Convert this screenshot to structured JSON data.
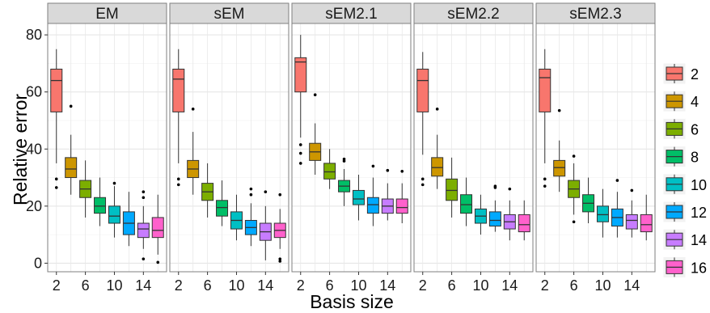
{
  "chart_data": {
    "type": "boxplot",
    "xlabel": "Basis size",
    "ylabel": "Relative error",
    "ylim": [
      -3,
      84
    ],
    "y_ticks": [
      0,
      20,
      40,
      60,
      80
    ],
    "x_ticks": [
      2,
      6,
      10,
      14
    ],
    "categories": [
      2,
      4,
      6,
      8,
      10,
      12,
      14,
      16
    ],
    "legend_title": "",
    "legend_position": "right",
    "grid": true,
    "colors": [
      "#F8766D",
      "#CD9600",
      "#7CAE00",
      "#00BE67",
      "#00BFC4",
      "#00A9FF",
      "#C77CFF",
      "#FF61CC"
    ],
    "panels": [
      {
        "name": "EM",
        "boxes": [
          {
            "basis": 2,
            "min": 35,
            "q1": 53,
            "median": 64,
            "q3": 68,
            "max": 75,
            "outliers": [
              29.5,
              26.5
            ]
          },
          {
            "basis": 4,
            "min": 24,
            "q1": 30,
            "median": 33,
            "q3": 37,
            "max": 45,
            "outliers": [
              55
            ]
          },
          {
            "basis": 6,
            "min": 16,
            "q1": 23,
            "median": 26,
            "q3": 29,
            "max": 36,
            "outliers": []
          },
          {
            "basis": 8,
            "min": 13,
            "q1": 17.5,
            "median": 20,
            "q3": 23,
            "max": 30,
            "outliers": []
          },
          {
            "basis": 10,
            "min": 9,
            "q1": 14,
            "median": 16.5,
            "q3": 20,
            "max": 27,
            "outliers": [
              28
            ]
          },
          {
            "basis": 12,
            "min": 6,
            "q1": 10,
            "median": 14,
            "q3": 18,
            "max": 25,
            "outliers": []
          },
          {
            "basis": 14,
            "min": 5,
            "q1": 9,
            "median": 12,
            "q3": 14,
            "max": 20,
            "outliers": [
              25,
              23,
              1.5
            ]
          },
          {
            "basis": 16,
            "min": 3,
            "q1": 9,
            "median": 11.5,
            "q3": 16,
            "max": 24,
            "outliers": [
              0.3
            ]
          }
        ]
      },
      {
        "name": "sEM",
        "boxes": [
          {
            "basis": 2,
            "min": 35,
            "q1": 53,
            "median": 64.5,
            "q3": 68,
            "max": 75,
            "outliers": [
              29.5,
              27.5
            ]
          },
          {
            "basis": 4,
            "min": 24,
            "q1": 30,
            "median": 33,
            "q3": 36,
            "max": 46,
            "outliers": [
              54
            ]
          },
          {
            "basis": 6,
            "min": 16,
            "q1": 22,
            "median": 25,
            "q3": 28,
            "max": 35,
            "outliers": []
          },
          {
            "basis": 8,
            "min": 13,
            "q1": 16.5,
            "median": 19.5,
            "q3": 22,
            "max": 29,
            "outliers": []
          },
          {
            "basis": 10,
            "min": 8,
            "q1": 12,
            "median": 15,
            "q3": 18,
            "max": 24,
            "outliers": []
          },
          {
            "basis": 12,
            "min": 6,
            "q1": 10,
            "median": 12.5,
            "q3": 15,
            "max": 21,
            "outliers": [
              26,
              24
            ]
          },
          {
            "basis": 14,
            "min": 1,
            "q1": 8,
            "median": 11,
            "q3": 14,
            "max": 20,
            "outliers": [
              25
            ]
          },
          {
            "basis": 16,
            "min": 5,
            "q1": 9,
            "median": 11.5,
            "q3": 14,
            "max": 19,
            "outliers": [
              24,
              1.5,
              0.7
            ]
          }
        ]
      },
      {
        "name": "sEM2.1",
        "boxes": [
          {
            "basis": 2,
            "min": 44,
            "q1": 60,
            "median": 70.5,
            "q3": 72,
            "max": 80,
            "outliers": [
              41.5,
              38.5,
              35
            ]
          },
          {
            "basis": 4,
            "min": 31,
            "q1": 36,
            "median": 39,
            "q3": 42,
            "max": 49,
            "outliers": [
              59
            ]
          },
          {
            "basis": 6,
            "min": 26,
            "q1": 29.5,
            "median": 32,
            "q3": 35,
            "max": 40,
            "outliers": []
          },
          {
            "basis": 8,
            "min": 20,
            "q1": 25,
            "median": 27,
            "q3": 29,
            "max": 33,
            "outliers": [
              36.5,
              35.8
            ]
          },
          {
            "basis": 10,
            "min": 15,
            "q1": 20.5,
            "median": 22.5,
            "q3": 25.5,
            "max": 31,
            "outliers": []
          },
          {
            "basis": 12,
            "min": 13,
            "q1": 17.5,
            "median": 20.5,
            "q3": 23,
            "max": 30,
            "outliers": [
              34
            ]
          },
          {
            "basis": 14,
            "min": 15,
            "q1": 17.5,
            "median": 20,
            "q3": 22.5,
            "max": 28,
            "outliers": [
              32.5
            ]
          },
          {
            "basis": 16,
            "min": 14,
            "q1": 17.5,
            "median": 19.5,
            "q3": 22.5,
            "max": 28,
            "outliers": [
              32.2
            ]
          }
        ]
      },
      {
        "name": "sEM2.2",
        "boxes": [
          {
            "basis": 2,
            "min": 38,
            "q1": 53,
            "median": 64,
            "q3": 68,
            "max": 74,
            "outliers": [
              29.5,
              27.5
            ]
          },
          {
            "basis": 4,
            "min": 26,
            "q1": 30.5,
            "median": 33.5,
            "q3": 37,
            "max": 45,
            "outliers": [
              54
            ]
          },
          {
            "basis": 6,
            "min": 16,
            "q1": 22,
            "median": 25.5,
            "q3": 29.5,
            "max": 37,
            "outliers": []
          },
          {
            "basis": 8,
            "min": 13,
            "q1": 17.5,
            "median": 20.5,
            "q3": 24,
            "max": 30,
            "outliers": []
          },
          {
            "basis": 10,
            "min": 10,
            "q1": 14,
            "median": 16.5,
            "q3": 19,
            "max": 24,
            "outliers": []
          },
          {
            "basis": 12,
            "min": 11,
            "q1": 13,
            "median": 15,
            "q3": 18,
            "max": 22,
            "outliers": [
              27,
              26.5
            ]
          },
          {
            "basis": 14,
            "min": 8,
            "q1": 12,
            "median": 14.5,
            "q3": 17,
            "max": 22,
            "outliers": [
              26
            ]
          },
          {
            "basis": 16,
            "min": 8,
            "q1": 11,
            "median": 13.5,
            "q3": 17,
            "max": 22,
            "outliers": []
          }
        ]
      },
      {
        "name": "sEM2.3",
        "boxes": [
          {
            "basis": 2,
            "min": 35,
            "q1": 53,
            "median": 65,
            "q3": 68,
            "max": 75,
            "outliers": [
              29.5,
              27
            ]
          },
          {
            "basis": 4,
            "min": 25,
            "q1": 30.5,
            "median": 33.5,
            "q3": 36,
            "max": 43,
            "outliers": [
              53.5
            ]
          },
          {
            "basis": 6,
            "min": 17,
            "q1": 23,
            "median": 26,
            "q3": 29,
            "max": 35,
            "outliers": [
              37.5,
              14.5
            ]
          },
          {
            "basis": 8,
            "min": 14,
            "q1": 18,
            "median": 21,
            "q3": 24,
            "max": 30,
            "outliers": []
          },
          {
            "basis": 10,
            "min": 9,
            "q1": 14.5,
            "median": 17,
            "q3": 20,
            "max": 26,
            "outliers": []
          },
          {
            "basis": 12,
            "min": 9,
            "q1": 13,
            "median": 16,
            "q3": 19,
            "max": 25,
            "outliers": [
              29
            ]
          },
          {
            "basis": 14,
            "min": 9,
            "q1": 12,
            "median": 15,
            "q3": 17,
            "max": 22,
            "outliers": [
              25.5
            ]
          },
          {
            "basis": 16,
            "min": 8,
            "q1": 11,
            "median": 13.5,
            "q3": 17,
            "max": 24,
            "outliers": []
          }
        ]
      }
    ]
  }
}
